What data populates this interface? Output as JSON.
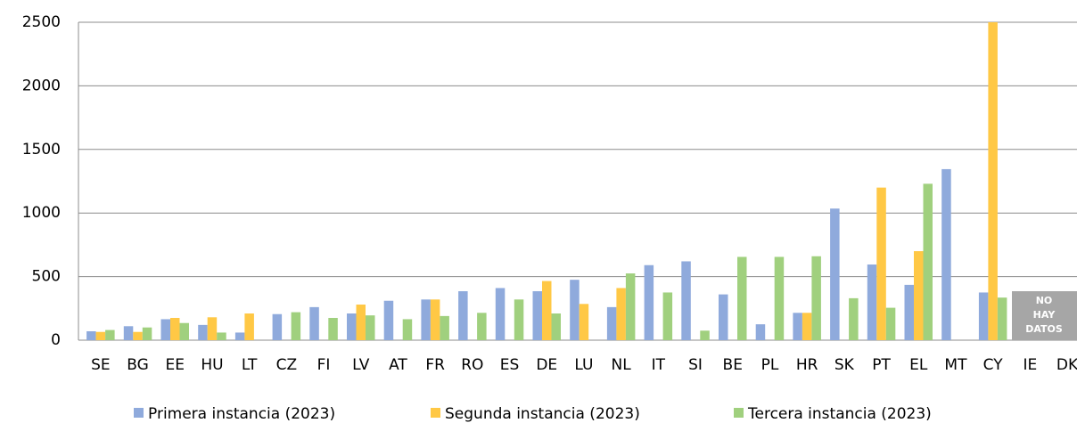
{
  "chart_data": {
    "type": "bar",
    "categories": [
      "SE",
      "BG",
      "EE",
      "HU",
      "LT",
      "CZ",
      "FI",
      "LV",
      "AT",
      "FR",
      "RO",
      "ES",
      "DE",
      "LU",
      "NL",
      "IT",
      "SI",
      "BE",
      "PL",
      "HR",
      "SK",
      "PT",
      "EL",
      "MT",
      "CY",
      "IE",
      "DK"
    ],
    "series": [
      {
        "name": "Primera instancia (2023)",
        "color": "#8faadc",
        "values": [
          70,
          110,
          165,
          120,
          60,
          205,
          260,
          210,
          310,
          320,
          385,
          410,
          385,
          475,
          260,
          590,
          620,
          360,
          125,
          215,
          1035,
          595,
          435,
          1345,
          375,
          null,
          null
        ]
      },
      {
        "name": "Segunda instancia (2023)",
        "color": "#ffc845",
        "values": [
          65,
          65,
          175,
          180,
          210,
          null,
          null,
          280,
          null,
          320,
          null,
          null,
          465,
          285,
          410,
          null,
          null,
          null,
          null,
          215,
          null,
          1200,
          700,
          null,
          2500,
          null,
          null
        ]
      },
      {
        "name": "Tercera instancia (2023)",
        "color": "#a0d07e",
        "values": [
          80,
          100,
          135,
          60,
          null,
          220,
          175,
          195,
          165,
          190,
          215,
          320,
          210,
          null,
          525,
          375,
          75,
          655,
          655,
          660,
          330,
          255,
          1230,
          null,
          335,
          null,
          null
        ]
      }
    ],
    "ylim": [
      0,
      2500
    ],
    "yticks": [
      0,
      500,
      1000,
      1500,
      2000,
      2500
    ],
    "grid": true,
    "legend": "bottom",
    "annotation": "NO HAY DATOS"
  }
}
